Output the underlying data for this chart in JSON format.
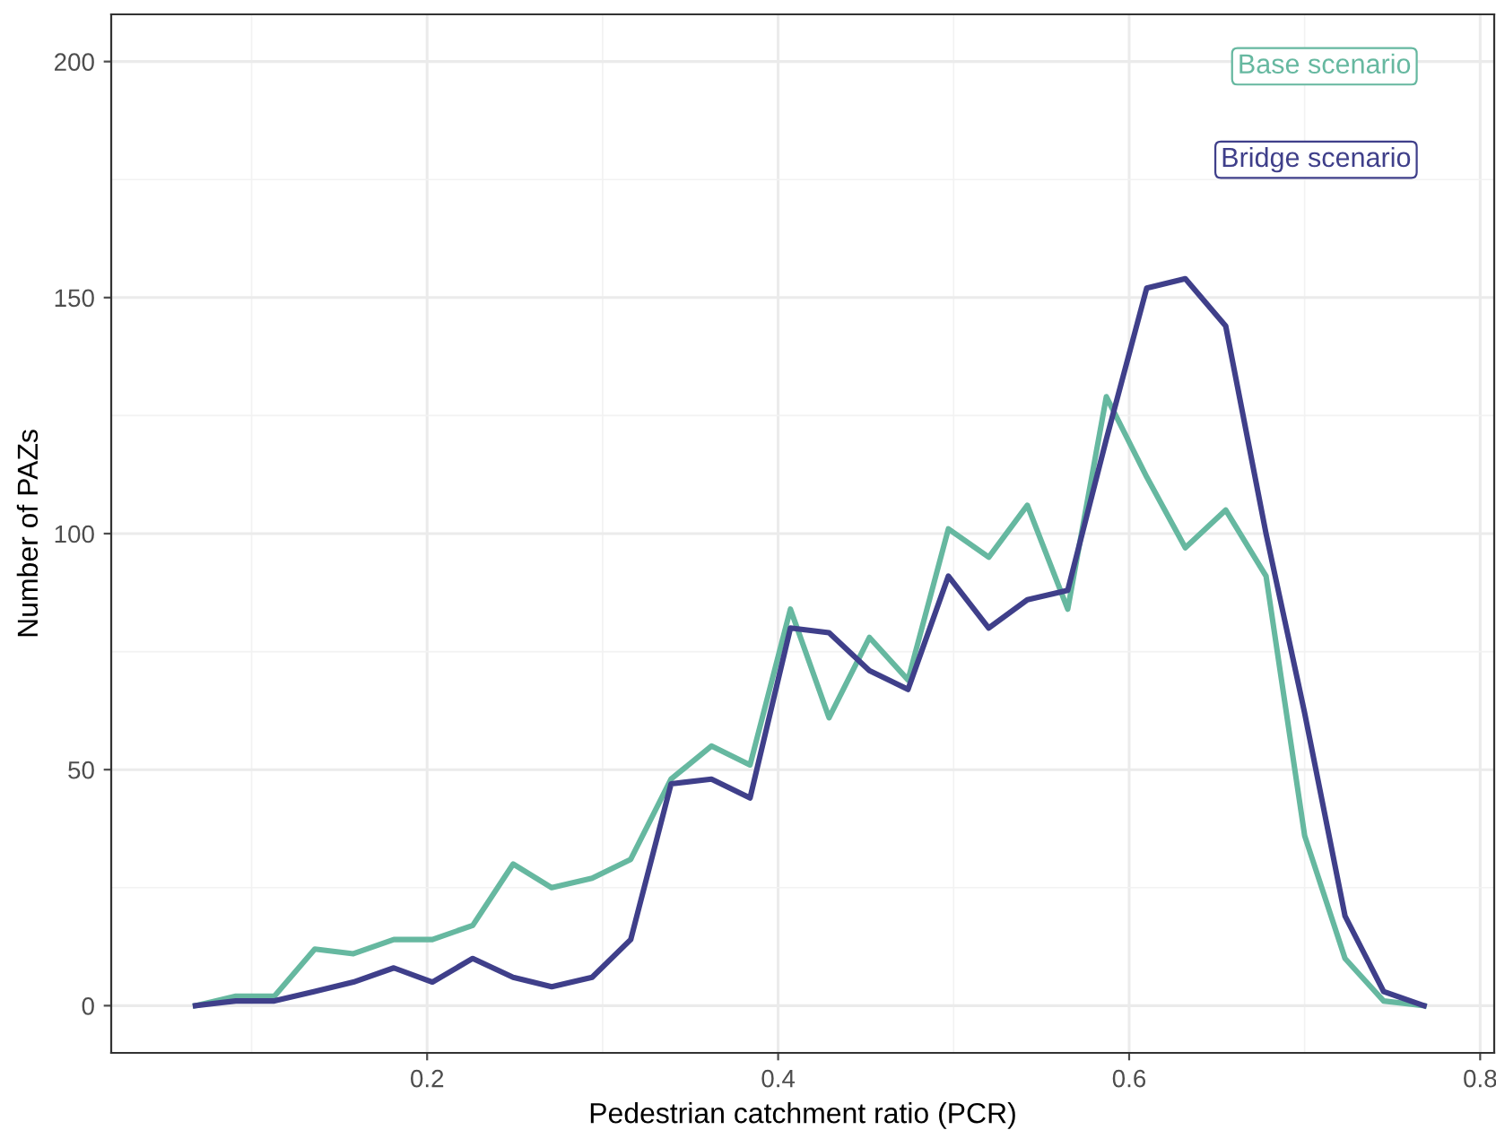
{
  "chart_data": {
    "type": "line",
    "xlabel": "Pedestrian catchment ratio (PCR)",
    "ylabel": "Number of PAZs",
    "x": [
      0.068,
      0.091,
      0.113,
      0.136,
      0.158,
      0.181,
      0.203,
      0.226,
      0.249,
      0.271,
      0.294,
      0.316,
      0.339,
      0.362,
      0.384,
      0.407,
      0.429,
      0.452,
      0.474,
      0.497,
      0.52,
      0.542,
      0.565,
      0.587,
      0.61,
      0.632,
      0.655,
      0.678,
      0.7,
      0.723,
      0.745,
      0.768
    ],
    "series": [
      {
        "name": "Base scenario",
        "color": "#66b8a0",
        "values": [
          0,
          2,
          2,
          12,
          11,
          14,
          14,
          17,
          30,
          25,
          27,
          31,
          48,
          55,
          51,
          84,
          61,
          78,
          69,
          101,
          95,
          106,
          84,
          129,
          112,
          97,
          105,
          91,
          36,
          10,
          1,
          0
        ]
      },
      {
        "name": "Bridge scenario",
        "color": "#3f3f8a",
        "values": [
          0,
          1,
          1,
          3,
          5,
          8,
          5,
          10,
          6,
          4,
          6,
          14,
          47,
          48,
          44,
          80,
          79,
          71,
          67,
          91,
          80,
          86,
          88,
          120,
          152,
          154,
          144,
          100,
          62,
          19,
          3,
          0
        ]
      }
    ],
    "xlim": [
      0.02,
      0.808
    ],
    "ylim": [
      -10,
      210
    ],
    "xticks": [
      0.2,
      0.4,
      0.6,
      0.8
    ],
    "yticks": [
      0,
      50,
      100,
      150,
      200
    ],
    "grid": true,
    "legend": "top right",
    "line_style": "solid",
    "marker": "none"
  }
}
